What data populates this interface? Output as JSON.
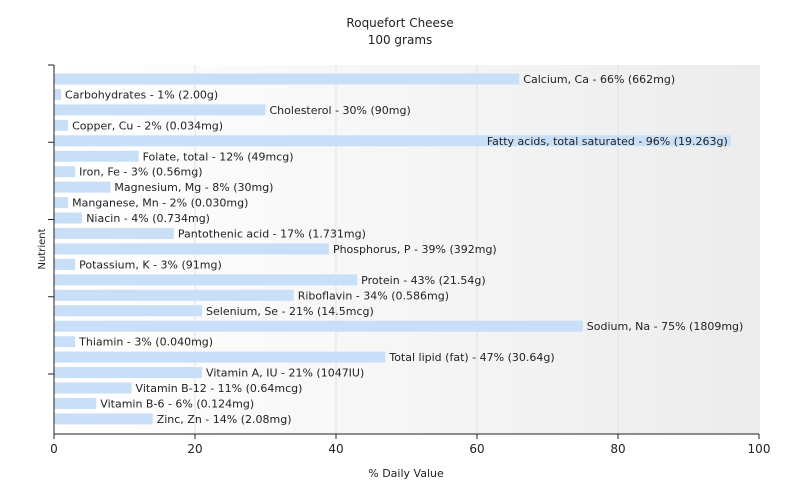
{
  "chart_data": {
    "type": "bar",
    "orientation": "horizontal",
    "title": "Roquefort Cheese",
    "subtitle": "100 grams",
    "xlabel": "% Daily Value",
    "ylabel": "Nutrient",
    "xlim": [
      0,
      100
    ],
    "xticks": [
      "0",
      "20",
      "40",
      "60",
      "80",
      "100"
    ],
    "grid": true,
    "bar_color": "#c9dff8",
    "categories": [
      "Calcium, Ca",
      "Carbohydrates",
      "Cholesterol",
      "Copper, Cu",
      "Fatty acids, total saturated",
      "Folate, total",
      "Iron, Fe",
      "Magnesium, Mg",
      "Manganese, Mn",
      "Niacin",
      "Pantothenic acid",
      "Phosphorus, P",
      "Potassium, K",
      "Protein",
      "Riboflavin",
      "Selenium, Se",
      "Sodium, Na",
      "Thiamin",
      "Total lipid (fat)",
      "Vitamin A, IU",
      "Vitamin B-12",
      "Vitamin B-6",
      "Zinc, Zn"
    ],
    "values": [
      66,
      1,
      30,
      2,
      96,
      12,
      3,
      8,
      2,
      4,
      17,
      39,
      3,
      43,
      34,
      21,
      75,
      3,
      47,
      21,
      11,
      6,
      14
    ],
    "labels": [
      "Calcium, Ca - 66% (662mg)",
      "Carbohydrates - 1% (2.00g)",
      "Cholesterol - 30% (90mg)",
      "Copper, Cu - 2% (0.034mg)",
      "Fatty acids, total saturated - 96% (19.263g)",
      "Folate, total - 12% (49mcg)",
      "Iron, Fe - 3% (0.56mg)",
      "Magnesium, Mg - 8% (30mg)",
      "Manganese, Mn - 2% (0.030mg)",
      "Niacin - 4% (0.734mg)",
      "Pantothenic acid - 17% (1.731mg)",
      "Phosphorus, P - 39% (392mg)",
      "Potassium, K - 3% (91mg)",
      "Protein - 43% (21.54g)",
      "Riboflavin - 34% (0.586mg)",
      "Selenium, Se - 21% (14.5mcg)",
      "Sodium, Na - 75% (1809mg)",
      "Thiamin - 3% (0.040mg)",
      "Total lipid (fat) - 47% (30.64g)",
      "Vitamin A, IU - 21% (1047IU)",
      "Vitamin B-12 - 11% (0.64mcg)",
      "Vitamin B-6 - 6% (0.124mg)",
      "Zinc, Zn - 14% (2.08mg)"
    ]
  }
}
